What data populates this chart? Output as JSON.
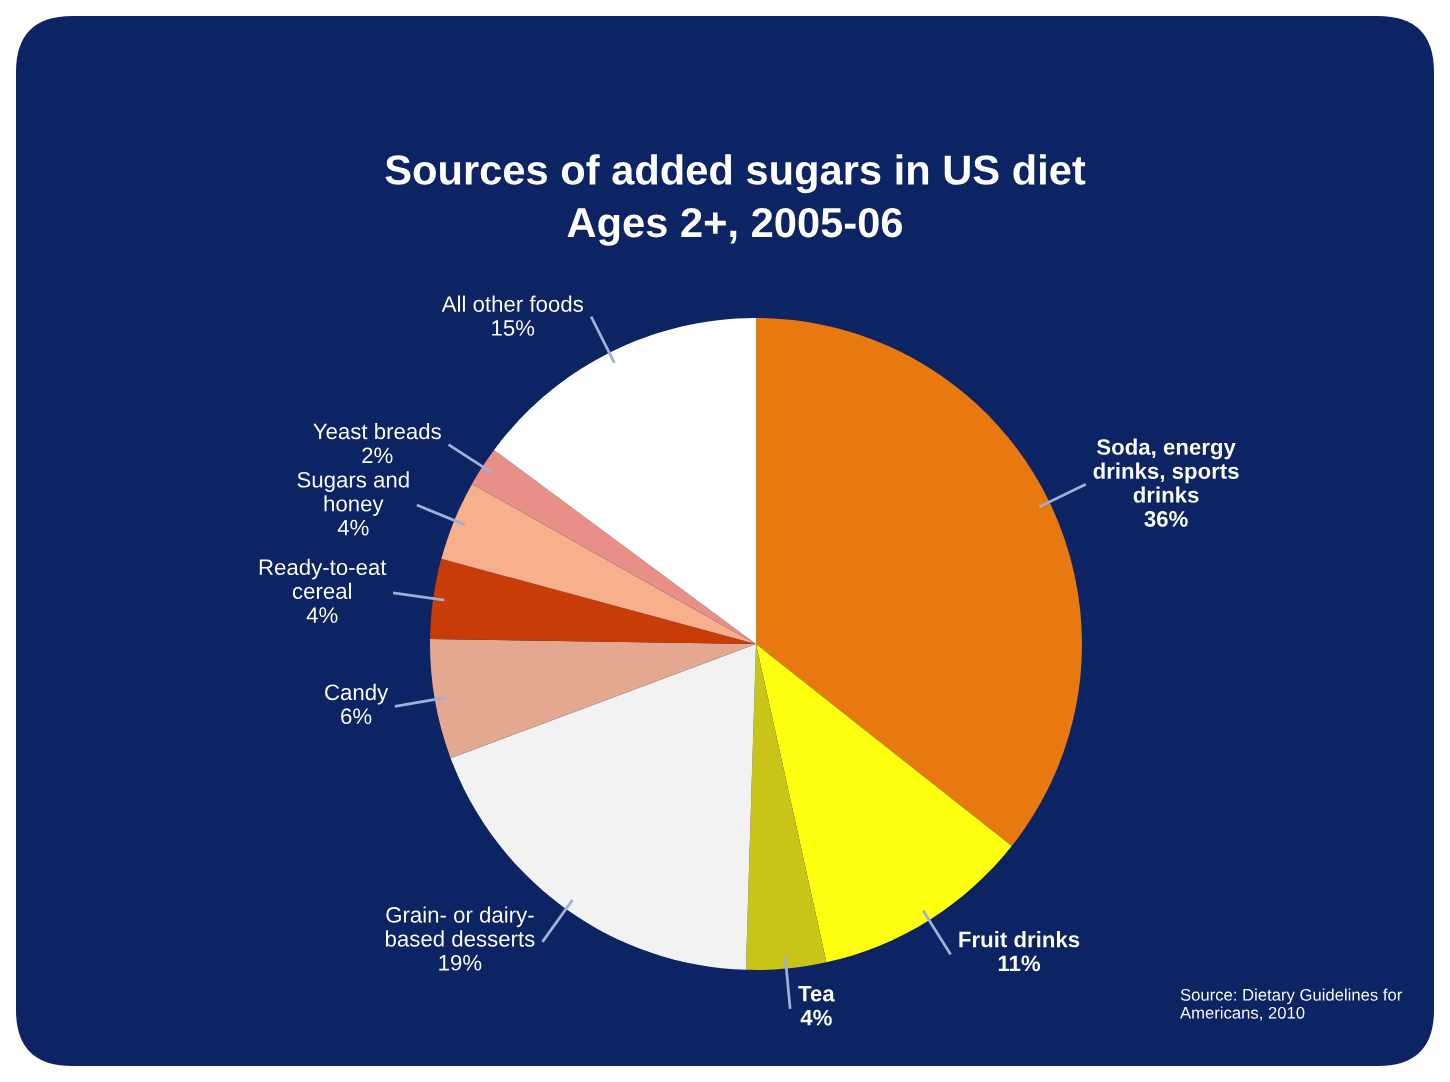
{
  "chart_data": {
    "type": "pie",
    "title": "Sources of added sugars in US diet\nAges 2+, 2005-06",
    "categories": [
      "Soda, energy\ndrinks, sports\ndrinks",
      "Fruit drinks",
      "Tea",
      "Grain- or dairy-\nbased desserts",
      "Candy",
      "Ready-to-eat\ncereal",
      "Sugars and\nhoney",
      "Yeast breads",
      "All other foods"
    ],
    "values": [
      36,
      11,
      4,
      19,
      6,
      4,
      4,
      2,
      15
    ],
    "value_labels": [
      "36%",
      "11%",
      "4%",
      "19%",
      "6%",
      "4%",
      "4%",
      "2%",
      "15%"
    ],
    "colors": [
      "#e87810",
      "#ffff10",
      "#c8c418",
      "#f2f2f2",
      "#e4a890",
      "#c83c08",
      "#f8b08c",
      "#e89088",
      "#ffffff"
    ],
    "annotations": [
      "Source: Dietary Guidelines for\nAmericans, 2010"
    ]
  }
}
